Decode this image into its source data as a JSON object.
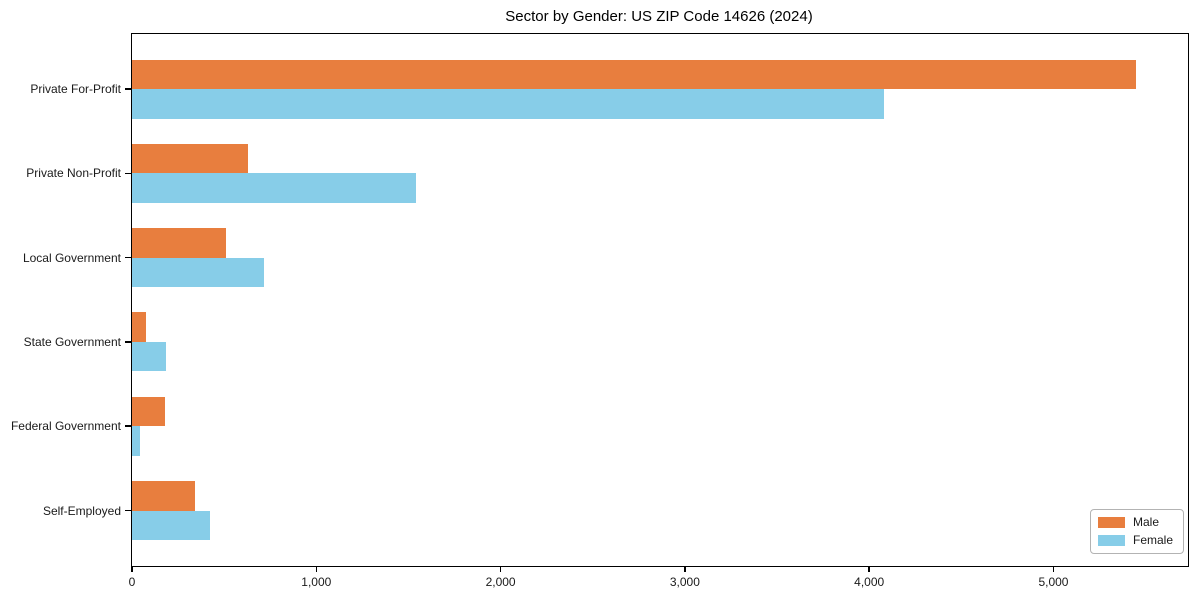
{
  "chart_data": {
    "type": "bar",
    "orientation": "horizontal",
    "title": "Sector by Gender: US ZIP Code 14626 (2024)",
    "categories": [
      "Private For-Profit",
      "Private Non-Profit",
      "Local Government",
      "State Government",
      "Federal Government",
      "Self-Employed"
    ],
    "series": [
      {
        "name": "Male",
        "color": "#e87e3e",
        "values": [
          5450,
          630,
          510,
          75,
          180,
          340
        ]
      },
      {
        "name": "Female",
        "color": "#87cde8",
        "values": [
          4080,
          1540,
          715,
          185,
          45,
          425
        ]
      }
    ],
    "xlim": [
      0,
      5730
    ],
    "xticks": [
      0,
      1000,
      2000,
      3000,
      4000,
      5000
    ],
    "xtick_labels": [
      "0",
      "1,000",
      "2,000",
      "3,000",
      "4,000",
      "5,000"
    ],
    "legend_position": "lower right",
    "grid": false,
    "colors": {
      "male": "#e87e3e",
      "female": "#87cde8",
      "axis": "#000000",
      "text": "#1a1a1a",
      "legend_border": "#b3b3b3",
      "background": "#ffffff"
    }
  }
}
